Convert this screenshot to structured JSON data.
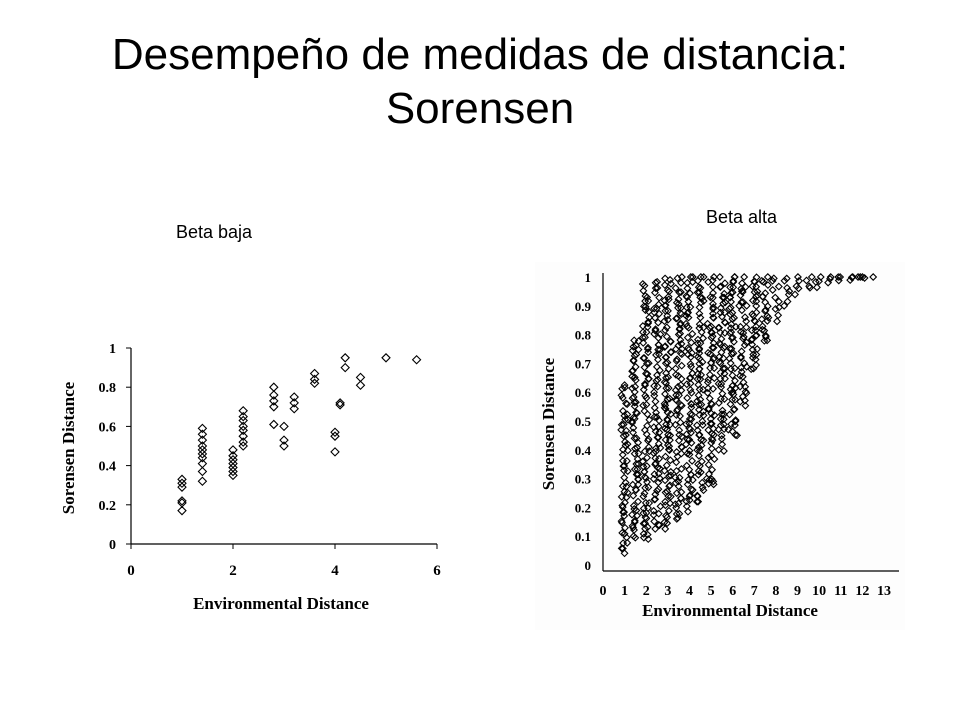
{
  "slide": {
    "title": "Desempeño de medidas de distancia: Sorensen",
    "label_left": "Beta baja",
    "label_right": "Beta alta"
  },
  "chart_data": [
    {
      "type": "scatter",
      "marker": "diamond",
      "xlabel": "Environmental Distance",
      "ylabel": "Sorensen Distance",
      "xlim": [
        0,
        6
      ],
      "ylim": [
        0,
        1
      ],
      "xticks": [
        "0",
        "2",
        "4",
        "6"
      ],
      "yticks": [
        "0",
        "0.2",
        "0.4",
        "0.6",
        "0.8",
        "1"
      ],
      "points": [
        [
          1.0,
          0.17
        ],
        [
          1.0,
          0.21
        ],
        [
          1.0,
          0.22
        ],
        [
          1.0,
          0.29
        ],
        [
          1.0,
          0.31
        ],
        [
          1.0,
          0.33
        ],
        [
          1.4,
          0.32
        ],
        [
          1.4,
          0.37
        ],
        [
          1.4,
          0.41
        ],
        [
          1.4,
          0.44
        ],
        [
          1.4,
          0.46
        ],
        [
          1.4,
          0.48
        ],
        [
          1.4,
          0.5
        ],
        [
          1.4,
          0.53
        ],
        [
          1.4,
          0.56
        ],
        [
          1.4,
          0.59
        ],
        [
          2.0,
          0.35
        ],
        [
          2.0,
          0.37
        ],
        [
          2.0,
          0.39
        ],
        [
          2.0,
          0.41
        ],
        [
          2.0,
          0.43
        ],
        [
          2.0,
          0.45
        ],
        [
          2.0,
          0.48
        ],
        [
          2.2,
          0.5
        ],
        [
          2.2,
          0.52
        ],
        [
          2.2,
          0.55
        ],
        [
          2.2,
          0.58
        ],
        [
          2.2,
          0.6
        ],
        [
          2.2,
          0.63
        ],
        [
          2.2,
          0.65
        ],
        [
          2.2,
          0.68
        ],
        [
          2.8,
          0.61
        ],
        [
          2.8,
          0.7
        ],
        [
          2.8,
          0.73
        ],
        [
          2.8,
          0.76
        ],
        [
          2.8,
          0.8
        ],
        [
          3.0,
          0.5
        ],
        [
          3.0,
          0.53
        ],
        [
          3.0,
          0.6
        ],
        [
          3.2,
          0.69
        ],
        [
          3.2,
          0.72
        ],
        [
          3.2,
          0.75
        ],
        [
          3.6,
          0.82
        ],
        [
          3.6,
          0.84
        ],
        [
          3.6,
          0.87
        ],
        [
          4.0,
          0.47
        ],
        [
          4.0,
          0.55
        ],
        [
          4.0,
          0.57
        ],
        [
          4.1,
          0.71
        ],
        [
          4.1,
          0.72
        ],
        [
          4.2,
          0.9
        ],
        [
          4.2,
          0.95
        ],
        [
          4.5,
          0.81
        ],
        [
          4.5,
          0.85
        ],
        [
          5.0,
          0.95
        ],
        [
          5.6,
          0.94
        ]
      ]
    },
    {
      "type": "scatter",
      "marker": "diamond",
      "xlabel": "Environmental Distance",
      "ylabel": "Sorensen Distance",
      "xlim": [
        0,
        13
      ],
      "ylim": [
        0,
        1
      ],
      "xticks": [
        "0",
        "1",
        "2",
        "3",
        "4",
        "5",
        "6",
        "7",
        "8",
        "9",
        "10",
        "11",
        "12",
        "13"
      ],
      "yticks": [
        "0",
        "0.1",
        "0.2",
        "0.3",
        "0.4",
        "0.5",
        "0.6",
        "0.7",
        "0.8",
        "0.9",
        "1"
      ],
      "envelope_note": "dense point cloud; columns per integer x",
      "columns": [
        {
          "x": 1,
          "ymin": 0.04,
          "ymax": 0.63
        },
        {
          "x": 1.5,
          "ymin": 0.1,
          "ymax": 0.78
        },
        {
          "x": 2,
          "ymin": 0.09,
          "ymax": 0.97
        },
        {
          "x": 2.5,
          "ymin": 0.12,
          "ymax": 0.98
        },
        {
          "x": 3,
          "ymin": 0.13,
          "ymax": 0.99
        },
        {
          "x": 3.5,
          "ymin": 0.16,
          "ymax": 1.0
        },
        {
          "x": 4,
          "ymin": 0.19,
          "ymax": 1.0
        },
        {
          "x": 4.5,
          "ymin": 0.22,
          "ymax": 1.0
        },
        {
          "x": 5,
          "ymin": 0.28,
          "ymax": 1.0
        },
        {
          "x": 5.5,
          "ymin": 0.4,
          "ymax": 1.0
        },
        {
          "x": 6,
          "ymin": 0.45,
          "ymax": 1.0
        },
        {
          "x": 6.5,
          "ymin": 0.55,
          "ymax": 1.0
        },
        {
          "x": 7,
          "ymin": 0.68,
          "ymax": 1.0
        },
        {
          "x": 7.5,
          "ymin": 0.78,
          "ymax": 1.0
        },
        {
          "x": 8,
          "ymin": 0.85,
          "ymax": 1.0
        },
        {
          "x": 8.5,
          "ymin": 0.9,
          "ymax": 1.0
        },
        {
          "x": 9,
          "ymin": 0.94,
          "ymax": 1.0
        },
        {
          "x": 9.5,
          "ymin": 0.96,
          "ymax": 1.0
        },
        {
          "x": 10,
          "ymin": 0.97,
          "ymax": 1.0
        },
        {
          "x": 10.5,
          "ymin": 0.98,
          "ymax": 1.0
        },
        {
          "x": 11,
          "ymin": 0.99,
          "ymax": 1.0
        },
        {
          "x": 11.5,
          "ymin": 0.99,
          "ymax": 1.0
        },
        {
          "x": 12,
          "ymin": 1.0,
          "ymax": 1.0
        }
      ],
      "outliers": [
        [
          6.3,
          0.9
        ],
        [
          6.0,
          0.6
        ],
        [
          5.8,
          0.47
        ],
        [
          6.2,
          0.45
        ],
        [
          4.8,
          0.3
        ],
        [
          5.1,
          0.29
        ],
        [
          12.5,
          1.0
        ],
        [
          11.8,
          1.0
        ]
      ]
    }
  ]
}
